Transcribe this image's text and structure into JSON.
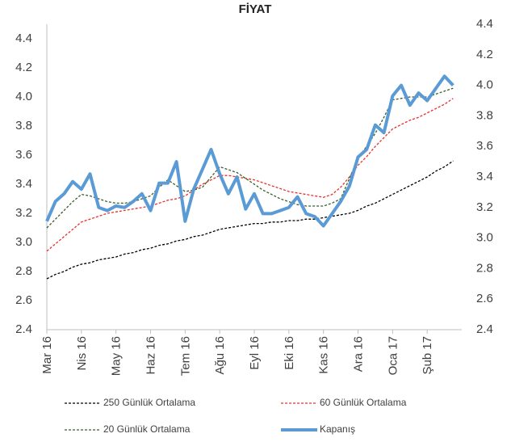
{
  "chart_data": {
    "type": "line",
    "title": "FİYAT",
    "categories": [
      "Mar 16",
      null,
      null,
      null,
      "Nis 16",
      null,
      null,
      null,
      "May 16",
      null,
      null,
      null,
      "Haz 16",
      null,
      null,
      null,
      "Tem 16",
      null,
      null,
      null,
      "Ağu 16",
      null,
      null,
      null,
      "Eyl 16",
      null,
      null,
      null,
      "Eki 16",
      null,
      null,
      null,
      "Kas 16",
      null,
      null,
      null,
      "Ara 16",
      null,
      null,
      null,
      "Oca 17",
      null,
      null,
      null,
      "Şub 17",
      null,
      null,
      null
    ],
    "series": [
      {
        "name": "250 Günlük Ortalama",
        "color": "#000000",
        "style": "dashed",
        "values": [
          2.75,
          2.78,
          2.8,
          2.83,
          2.85,
          2.86,
          2.88,
          2.89,
          2.9,
          2.92,
          2.93,
          2.95,
          2.96,
          2.98,
          2.99,
          3.01,
          3.02,
          3.04,
          3.05,
          3.07,
          3.09,
          3.1,
          3.11,
          3.12,
          3.13,
          3.13,
          3.14,
          3.14,
          3.15,
          3.15,
          3.16,
          3.16,
          3.17,
          3.18,
          3.19,
          3.2,
          3.22,
          3.25,
          3.27,
          3.3,
          3.33,
          3.36,
          3.39,
          3.42,
          3.45,
          3.49,
          3.52,
          3.56
        ]
      },
      {
        "name": "60 Günlük Ortalama",
        "color": "#e8302a",
        "style": "dashed",
        "values": [
          2.94,
          2.99,
          3.04,
          3.09,
          3.14,
          3.16,
          3.18,
          3.2,
          3.21,
          3.22,
          3.23,
          3.24,
          3.25,
          3.27,
          3.29,
          3.3,
          3.32,
          3.36,
          3.4,
          3.43,
          3.46,
          3.46,
          3.45,
          3.44,
          3.43,
          3.41,
          3.39,
          3.37,
          3.35,
          3.34,
          3.33,
          3.32,
          3.31,
          3.33,
          3.38,
          3.45,
          3.53,
          3.59,
          3.66,
          3.72,
          3.78,
          3.81,
          3.84,
          3.86,
          3.89,
          3.92,
          3.95,
          3.99
        ]
      },
      {
        "name": "20 Günlük Ortalama",
        "color": "#3b5e2b",
        "style": "dashed",
        "values": [
          3.1,
          3.16,
          3.22,
          3.28,
          3.33,
          3.32,
          3.3,
          3.28,
          3.27,
          3.27,
          3.28,
          3.3,
          3.32,
          3.38,
          3.43,
          3.39,
          3.35,
          3.36,
          3.38,
          3.45,
          3.52,
          3.5,
          3.48,
          3.44,
          3.4,
          3.36,
          3.33,
          3.3,
          3.28,
          3.26,
          3.25,
          3.25,
          3.25,
          3.27,
          3.3,
          3.44,
          3.58,
          3.66,
          3.75,
          3.86,
          3.98,
          3.99,
          4.0,
          4.0,
          4.0,
          4.02,
          4.04,
          4.06
        ]
      },
      {
        "name": "Kapanış",
        "color": "#5b9bd5",
        "style": "solid",
        "axis": "y2",
        "values": [
          3.11,
          3.24,
          3.29,
          3.37,
          3.32,
          3.42,
          3.2,
          3.18,
          3.21,
          3.2,
          3.24,
          3.29,
          3.18,
          3.36,
          3.36,
          3.5,
          3.11,
          3.32,
          3.45,
          3.58,
          3.42,
          3.29,
          3.4,
          3.19,
          3.29,
          3.16,
          3.16,
          3.18,
          3.2,
          3.27,
          3.16,
          3.14,
          3.08,
          3.16,
          3.24,
          3.34,
          3.53,
          3.58,
          3.74,
          3.69,
          3.93,
          4.0,
          3.87,
          3.95,
          3.9,
          3.98,
          4.06,
          4.0
        ]
      }
    ],
    "ylim": [
      2.4,
      4.5
    ],
    "yticks": [
      2.4,
      2.6,
      2.8,
      {
        "value": 3,
        "label": "3.0"
      },
      3.2,
      3.4,
      3.6,
      3.8,
      {
        "value": 4,
        "label": "4.0"
      },
      4.2,
      4.4
    ],
    "y2lim": [
      2.4,
      4.4
    ],
    "y2ticks": [
      2.4,
      2.6,
      2.8,
      {
        "value": 3,
        "label": "3.0"
      },
      3.2,
      3.4,
      3.6,
      3.8,
      {
        "value": 4,
        "label": "4.0"
      },
      4.2,
      4.4
    ],
    "grid": false
  }
}
